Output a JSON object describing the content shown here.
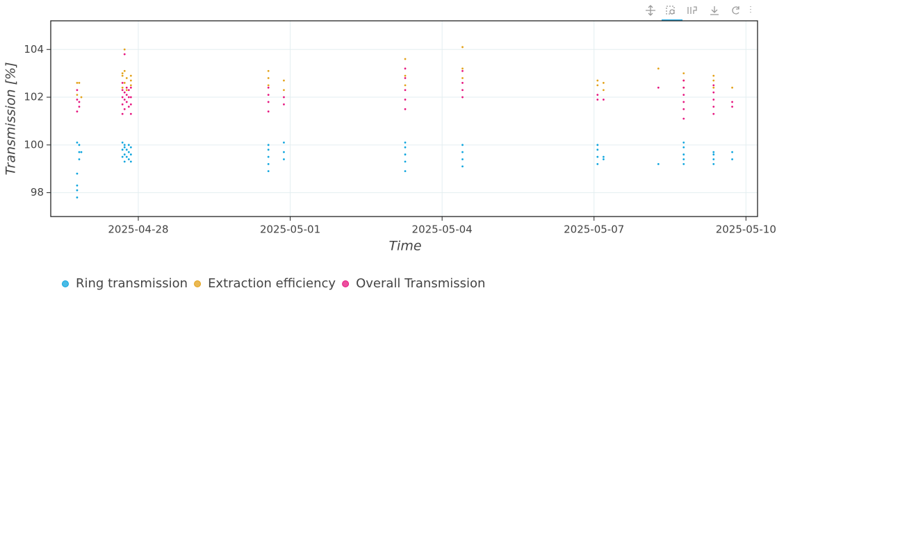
{
  "chart_data": {
    "type": "scatter",
    "x_label": "Time",
    "y_label": "Transmission [%]",
    "xlim": [
      "2025-04-26 06:30",
      "2025-05-10 05:30"
    ],
    "xticks": [
      "2025-04-28",
      "2025-05-01",
      "2025-05-04",
      "2025-05-07",
      "2025-05-10"
    ],
    "ylim": [
      97,
      105.2
    ],
    "yticks": [
      98,
      100,
      102,
      104
    ],
    "grid": true,
    "legend": "bottom-left",
    "series": [
      {
        "name": "Ring transmission",
        "color": "#0ea5de",
        "x": [
          "2025-04-26 19:00",
          "2025-04-26 19:00",
          "2025-04-26 19:00",
          "2025-04-26 19:00",
          "2025-04-26 19:00",
          "2025-04-26 20:00",
          "2025-04-26 20:00",
          "2025-04-26 20:00",
          "2025-04-26 21:00",
          "2025-04-27 16:30",
          "2025-04-27 16:30",
          "2025-04-27 16:30",
          "2025-04-27 17:30",
          "2025-04-27 17:30",
          "2025-04-27 17:30",
          "2025-04-27 17:30",
          "2025-04-27 18:30",
          "2025-04-27 18:30",
          "2025-04-27 19:30",
          "2025-04-27 19:30",
          "2025-04-27 19:30",
          "2025-04-27 20:30",
          "2025-04-27 20:30",
          "2025-04-27 20:30",
          "2025-04-30 13:40",
          "2025-04-30 13:40",
          "2025-04-30 13:40",
          "2025-04-30 13:40",
          "2025-04-30 13:40",
          "2025-04-30 21:00",
          "2025-04-30 21:00",
          "2025-04-30 21:00",
          "2025-05-03 06:30",
          "2025-05-03 06:30",
          "2025-05-03 06:30",
          "2025-05-03 06:30",
          "2025-05-03 06:30",
          "2025-05-04 09:40",
          "2025-05-04 09:40",
          "2025-05-04 09:40",
          "2025-05-04 09:40",
          "2025-05-07 01:40",
          "2025-05-07 01:40",
          "2025-05-07 01:40",
          "2025-05-07 01:40",
          "2025-05-07 04:30",
          "2025-05-07 04:30",
          "2025-05-08 06:30",
          "2025-05-08 18:30",
          "2025-05-08 18:30",
          "2025-05-08 18:30",
          "2025-05-08 18:30",
          "2025-05-08 18:30",
          "2025-05-09 08:40",
          "2025-05-09 08:40",
          "2025-05-09 08:40",
          "2025-05-09 08:40",
          "2025-05-09 17:30",
          "2025-05-09 17:30"
        ],
        "values": [
          97.8,
          98.1,
          98.3,
          98.8,
          100.1,
          99.4,
          99.7,
          100.0,
          99.7,
          99.5,
          99.8,
          100.1,
          99.3,
          99.6,
          99.9,
          100.0,
          99.5,
          99.8,
          99.4,
          99.7,
          100.0,
          99.3,
          99.6,
          99.9,
          98.9,
          99.2,
          99.5,
          99.8,
          100.0,
          99.4,
          99.7,
          100.1,
          98.9,
          99.3,
          99.6,
          99.9,
          100.1,
          99.1,
          99.4,
          99.7,
          100.0,
          99.2,
          99.5,
          99.8,
          100.0,
          99.4,
          99.5,
          99.2,
          99.2,
          99.4,
          99.6,
          99.9,
          100.1,
          99.2,
          99.4,
          99.6,
          99.7,
          99.4,
          99.7
        ]
      },
      {
        "name": "Extraction efficiency",
        "color": "#e3a21a",
        "x": [
          "2025-04-26 19:00",
          "2025-04-26 19:00",
          "2025-04-26 20:00",
          "2025-04-26 21:00",
          "2025-04-27 16:30",
          "2025-04-27 16:30",
          "2025-04-27 16:30",
          "2025-04-27 17:30",
          "2025-04-27 17:30",
          "2025-04-27 17:30",
          "2025-04-27 18:30",
          "2025-04-27 18:30",
          "2025-04-27 20:30",
          "2025-04-27 20:30",
          "2025-04-27 20:30",
          "2025-04-30 13:40",
          "2025-04-30 13:40",
          "2025-04-30 13:40",
          "2025-04-30 21:00",
          "2025-04-30 21:00",
          "2025-05-03 06:30",
          "2025-05-03 06:30",
          "2025-05-03 06:30",
          "2025-05-04 09:40",
          "2025-05-04 09:40",
          "2025-05-04 09:40",
          "2025-05-07 01:40",
          "2025-05-07 01:40",
          "2025-05-07 04:30",
          "2025-05-07 04:30",
          "2025-05-08 06:30",
          "2025-05-08 18:30",
          "2025-05-08 18:30",
          "2025-05-08 18:30",
          "2025-05-09 08:40",
          "2025-05-09 08:40",
          "2025-05-09 08:40",
          "2025-05-09 17:30"
        ],
        "values": [
          102.1,
          102.6,
          102.6,
          102.0,
          102.4,
          102.9,
          103.0,
          102.6,
          104.0,
          103.1,
          102.3,
          102.8,
          102.5,
          102.9,
          102.7,
          102.5,
          102.8,
          103.1,
          102.3,
          102.7,
          102.5,
          102.9,
          103.6,
          102.8,
          103.2,
          104.1,
          102.5,
          102.7,
          102.6,
          102.3,
          103.2,
          102.4,
          102.7,
          103.0,
          102.4,
          102.7,
          102.9,
          102.4
        ]
      },
      {
        "name": "Overall Transmission",
        "color": "#e6157f",
        "x": [
          "2025-04-26 19:00",
          "2025-04-26 19:00",
          "2025-04-26 19:00",
          "2025-04-26 20:00",
          "2025-04-26 20:00",
          "2025-04-27 16:30",
          "2025-04-27 16:30",
          "2025-04-27 16:30",
          "2025-04-27 16:30",
          "2025-04-27 16:30",
          "2025-04-27 17:30",
          "2025-04-27 17:30",
          "2025-04-27 17:30",
          "2025-04-27 17:30",
          "2025-04-27 18:30",
          "2025-04-27 18:30",
          "2025-04-27 18:30",
          "2025-04-27 19:30",
          "2025-04-27 19:30",
          "2025-04-27 19:30",
          "2025-04-27 20:30",
          "2025-04-27 20:30",
          "2025-04-27 20:30",
          "2025-04-27 20:30",
          "2025-04-30 13:40",
          "2025-04-30 13:40",
          "2025-04-30 13:40",
          "2025-04-30 13:40",
          "2025-04-30 21:00",
          "2025-04-30 21:00",
          "2025-05-03 06:30",
          "2025-05-03 06:30",
          "2025-05-03 06:30",
          "2025-05-03 06:30",
          "2025-05-03 06:30",
          "2025-05-04 09:40",
          "2025-05-04 09:40",
          "2025-05-04 09:40",
          "2025-05-04 09:40",
          "2025-05-07 01:40",
          "2025-05-07 01:40",
          "2025-05-07 04:30",
          "2025-05-08 06:30",
          "2025-05-08 18:30",
          "2025-05-08 18:30",
          "2025-05-08 18:30",
          "2025-05-08 18:30",
          "2025-05-08 18:30",
          "2025-05-08 18:30",
          "2025-05-09 08:40",
          "2025-05-09 08:40",
          "2025-05-09 08:40",
          "2025-05-09 08:40",
          "2025-05-09 08:40",
          "2025-05-09 17:30",
          "2025-05-09 17:30"
        ],
        "values": [
          101.4,
          101.9,
          102.3,
          101.6,
          101.8,
          101.3,
          101.7,
          102.0,
          102.3,
          102.6,
          101.5,
          101.9,
          102.2,
          103.8,
          101.8,
          102.1,
          102.4,
          101.6,
          102.0,
          102.3,
          101.3,
          101.7,
          102.0,
          102.4,
          101.4,
          101.8,
          102.1,
          102.4,
          101.7,
          102.0,
          101.5,
          101.9,
          102.3,
          102.8,
          103.2,
          102.0,
          102.3,
          102.6,
          103.1,
          101.9,
          102.1,
          101.9,
          102.4,
          101.1,
          101.5,
          101.8,
          102.1,
          102.4,
          102.7,
          101.3,
          101.6,
          101.9,
          102.2,
          102.5,
          101.6,
          101.8
        ]
      }
    ]
  }
}
